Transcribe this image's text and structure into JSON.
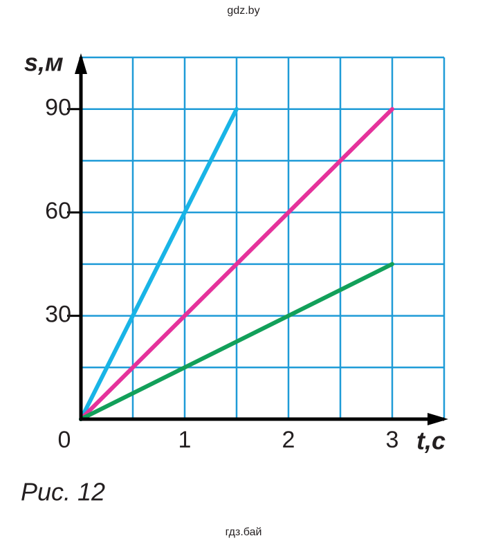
{
  "header": {
    "watermark_top": "gdz.by",
    "watermark_bottom": "гдз.бай",
    "caption": "Рис. 12"
  },
  "chart_data": {
    "type": "line",
    "xlabel": "t,с",
    "ylabel": "s,м",
    "xlim": [
      0,
      3.5
    ],
    "ylim": [
      0,
      105
    ],
    "xticks": [
      0,
      1,
      2,
      3
    ],
    "yticks": [
      30,
      60,
      90
    ],
    "xgrid": [
      0.5,
      1,
      1.5,
      2,
      2.5,
      3,
      3.5
    ],
    "ygrid": [
      15,
      30,
      45,
      60,
      75,
      90,
      105
    ],
    "grid": true,
    "grid_color": "#1e9bd7",
    "axis_color": "#000000",
    "series": [
      {
        "color": "#19b4e6",
        "x": [
          0,
          1.5
        ],
        "values": [
          0,
          90
        ]
      },
      {
        "color": "#e5329b",
        "x": [
          0,
          3
        ],
        "values": [
          0,
          90
        ]
      },
      {
        "color": "#12a05a",
        "x": [
          0,
          3
        ],
        "values": [
          0,
          45
        ]
      }
    ]
  }
}
